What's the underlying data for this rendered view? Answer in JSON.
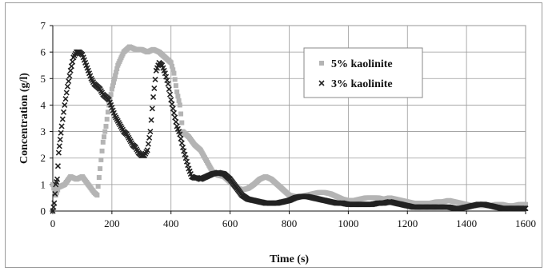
{
  "chart_data": {
    "type": "scatter",
    "title": "",
    "xlabel": "Time (s)",
    "ylabel": "Concentration (g/l)",
    "xlim": [
      0,
      1600
    ],
    "ylim": [
      0,
      7
    ],
    "xticks": [
      "0",
      "200",
      "400",
      "600",
      "800",
      "1000",
      "1200",
      "1400",
      "1600"
    ],
    "yticks": [
      "0",
      "1",
      "2",
      "3",
      "4",
      "5",
      "6",
      "7"
    ],
    "grid": true,
    "legend_position": "top-right inside plot",
    "series": [
      {
        "name": "5% kaolinite",
        "marker": "square",
        "color": "#b4b4b4",
        "x": [
          0,
          10,
          20,
          40,
          60,
          80,
          100,
          120,
          140,
          150,
          160,
          170,
          180,
          190,
          200,
          220,
          240,
          260,
          280,
          300,
          320,
          340,
          360,
          380,
          400,
          410,
          420,
          430,
          440,
          460,
          480,
          500,
          520,
          540,
          560,
          580,
          600,
          620,
          640,
          660,
          680,
          700,
          720,
          740,
          760,
          780,
          800,
          820,
          840,
          860,
          880,
          900,
          920,
          940,
          960,
          980,
          1000,
          1020,
          1040,
          1060,
          1080,
          1100,
          1120,
          1140,
          1160,
          1180,
          1200,
          1220,
          1240,
          1260,
          1280,
          1300,
          1320,
          1340,
          1360,
          1380,
          1400,
          1420,
          1440,
          1460,
          1480,
          1500,
          1520,
          1540,
          1560,
          1580,
          1600
        ],
        "y": [
          1.0,
          0.6,
          0.9,
          1.0,
          1.3,
          1.2,
          1.3,
          1.0,
          0.7,
          0.6,
          1.6,
          2.6,
          3.2,
          4.0,
          4.6,
          5.5,
          6.0,
          6.2,
          6.1,
          6.1,
          6.0,
          6.1,
          6.0,
          5.8,
          5.6,
          5.2,
          4.5,
          4.0,
          3.0,
          2.8,
          2.5,
          2.3,
          1.9,
          1.5,
          1.35,
          1.3,
          1.1,
          0.9,
          0.8,
          0.85,
          1.0,
          1.2,
          1.3,
          1.2,
          1.0,
          0.8,
          0.6,
          0.55,
          0.55,
          0.6,
          0.65,
          0.7,
          0.7,
          0.65,
          0.55,
          0.45,
          0.4,
          0.4,
          0.45,
          0.5,
          0.5,
          0.5,
          0.45,
          0.5,
          0.45,
          0.4,
          0.35,
          0.3,
          0.3,
          0.3,
          0.3,
          0.35,
          0.35,
          0.4,
          0.35,
          0.3,
          0.25,
          0.2,
          0.2,
          0.2,
          0.2,
          0.25,
          0.25,
          0.2,
          0.2,
          0.25,
          0.25
        ]
      },
      {
        "name": "3% kaolinite",
        "marker": "x",
        "color": "#222222",
        "x": [
          0,
          5,
          10,
          15,
          20,
          25,
          30,
          40,
          50,
          60,
          70,
          80,
          90,
          100,
          110,
          120,
          130,
          140,
          150,
          160,
          170,
          180,
          190,
          200,
          210,
          220,
          230,
          240,
          250,
          260,
          270,
          280,
          290,
          300,
          310,
          320,
          330,
          340,
          350,
          360,
          370,
          380,
          390,
          400,
          410,
          420,
          430,
          440,
          450,
          460,
          470,
          480,
          490,
          500,
          520,
          540,
          560,
          580,
          600,
          620,
          640,
          660,
          680,
          700,
          720,
          740,
          760,
          780,
          800,
          820,
          840,
          860,
          880,
          900,
          920,
          940,
          960,
          980,
          1000,
          1020,
          1040,
          1060,
          1080,
          1100,
          1120,
          1140,
          1160,
          1180,
          1200,
          1220,
          1240,
          1260,
          1280,
          1300,
          1320,
          1340,
          1360,
          1380,
          1400,
          1420,
          1440,
          1460,
          1480,
          1500,
          1520,
          1540,
          1560,
          1580,
          1600
        ],
        "y": [
          0.0,
          0.3,
          1.0,
          1.2,
          2.2,
          2.7,
          3.2,
          4.0,
          4.7,
          5.3,
          5.8,
          6.0,
          6.0,
          5.9,
          5.6,
          5.3,
          5.0,
          4.8,
          4.7,
          4.6,
          4.4,
          4.3,
          4.2,
          3.9,
          3.6,
          3.4,
          3.2,
          3.0,
          2.9,
          2.7,
          2.5,
          2.4,
          2.2,
          2.1,
          2.1,
          2.3,
          3.0,
          4.3,
          5.3,
          5.6,
          5.5,
          5.2,
          4.8,
          4.2,
          3.7,
          3.2,
          2.9,
          2.4,
          2.0,
          1.6,
          1.3,
          1.25,
          1.25,
          1.2,
          1.3,
          1.4,
          1.45,
          1.4,
          1.2,
          0.9,
          0.6,
          0.45,
          0.4,
          0.35,
          0.3,
          0.3,
          0.3,
          0.35,
          0.4,
          0.5,
          0.55,
          0.55,
          0.5,
          0.45,
          0.4,
          0.35,
          0.3,
          0.3,
          0.25,
          0.25,
          0.25,
          0.25,
          0.25,
          0.3,
          0.3,
          0.35,
          0.3,
          0.25,
          0.2,
          0.15,
          0.15,
          0.15,
          0.15,
          0.15,
          0.15,
          0.15,
          0.1,
          0.1,
          0.15,
          0.2,
          0.25,
          0.25,
          0.2,
          0.15,
          0.1,
          0.1,
          0.1,
          0.1,
          0.1
        ]
      }
    ]
  }
}
